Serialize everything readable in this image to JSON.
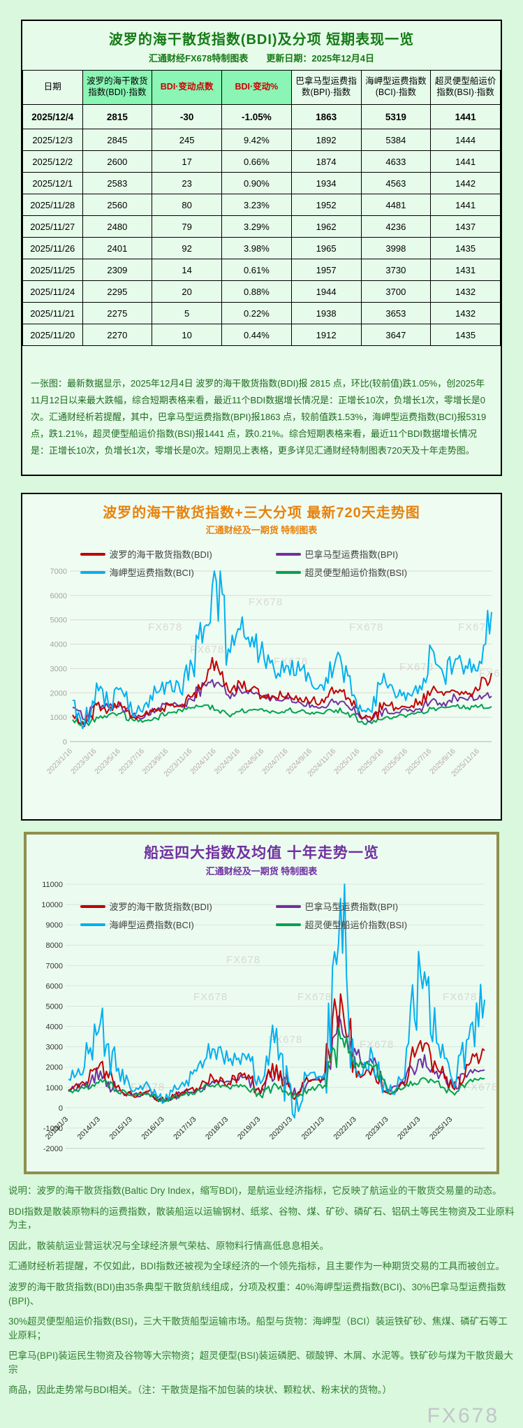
{
  "page": {
    "watermark": "FX678"
  },
  "colors": {
    "table_title_green": "#157a15",
    "header_green_bg": "#8af5b4",
    "header_red_text": "#cc0000",
    "chart720_orange": "#e8820c",
    "chart10y_purple": "#7030a0",
    "bdi_red": "#c00000",
    "bpi_purple": "#7030a0",
    "bci_cyan": "#00b0f0",
    "bsi_green": "#00a24f"
  },
  "table_section": {
    "title": "波罗的海干散货指数(BDI)及分项 短期表现一览",
    "subtitle": "汇通财经FX678特制图表　　更新日期：2025年12月4日",
    "columns": [
      "日期",
      "波罗的海干散货指数(BDI)·指数",
      "BDI·变动点数",
      "BDI·变动%",
      "巴拿马型运费指数(BPI)·指数",
      "海岬型运费指数(BCI)·指数",
      "超灵便型船运价指数(BSI)·指数"
    ],
    "rows": [
      [
        "2025/12/4",
        "2815",
        "-30",
        "-1.05%",
        "1863",
        "5319",
        "1441"
      ],
      [
        "2025/12/3",
        "2845",
        "245",
        "9.42%",
        "1892",
        "5384",
        "1444"
      ],
      [
        "2025/12/2",
        "2600",
        "17",
        "0.66%",
        "1874",
        "4633",
        "1441"
      ],
      [
        "2025/12/1",
        "2583",
        "23",
        "0.90%",
        "1934",
        "4563",
        "1442"
      ],
      [
        "2025/11/28",
        "2560",
        "80",
        "3.23%",
        "1952",
        "4481",
        "1441"
      ],
      [
        "2025/11/27",
        "2480",
        "79",
        "3.29%",
        "1962",
        "4236",
        "1437"
      ],
      [
        "2025/11/26",
        "2401",
        "92",
        "3.98%",
        "1965",
        "3998",
        "1435"
      ],
      [
        "2025/11/25",
        "2309",
        "14",
        "0.61%",
        "1957",
        "3730",
        "1431"
      ],
      [
        "2025/11/24",
        "2295",
        "20",
        "0.88%",
        "1944",
        "3700",
        "1432"
      ],
      [
        "2025/11/21",
        "2275",
        "5",
        "0.22%",
        "1938",
        "3653",
        "1432"
      ],
      [
        "2025/11/20",
        "2270",
        "10",
        "0.44%",
        "1912",
        "3647",
        "1435"
      ]
    ],
    "note": "一张图：最新数据显示，2025年12月4日 波罗的海干散货指数(BDI)报 2815 点，环比(较前值)跌1.05%，创2025年11月12日以来最大跌幅，综合短期表格来看，最近11个BDI数据增长情况是：正增长10次，负增长1次，零增长是0次。汇通财经析若提醒，其中，巴拿马型运费指数(BPI)报1863 点，较前值跌1.53%，海岬型运费指数(BCI)报5319 点，跌1.21%，超灵便型船运价指数(BSI)报1441 点，跌0.21%。综合短期表格来看，最近11个BDI数据增长情况是：正增长10次，负增长1次，零增长是0次。短期见上表格，更多详见汇通财经特制图表720天及十年走势图。"
  },
  "chart_data": [
    {
      "type": "line",
      "title": "波罗的海干散货指数+三大分项  最新720天走势图",
      "subtitle": "汇通财经及一期货 特制图表",
      "ylim": [
        0,
        7000
      ],
      "ystep": 1000,
      "grid": true,
      "legend_position": "top-inside",
      "points_per_label": 2,
      "x_labels": [
        "2023/1/16",
        "2023/3/16",
        "2023/5/16",
        "2023/7/16",
        "2023/9/16",
        "2023/11/16",
        "2024/1/16",
        "2024/3/16",
        "2024/5/16",
        "2024/7/16",
        "2024/9/16",
        "2024/11/16",
        "2025/1/16",
        "2025/3/16",
        "2025/5/16",
        "2025/7/16",
        "2025/9/16",
        "2025/11/16"
      ],
      "series": [
        {
          "name": "波罗的海干散货指数(BDI)",
          "color": "#c00000",
          "z": 3,
          "vol": 0.07,
          "values": [
            1100,
            620,
            1500,
            1300,
            1500,
            1000,
            1100,
            1250,
            1500,
            1450,
            1850,
            2400,
            3300,
            2100,
            2400,
            2200,
            1900,
            1800,
            2000,
            1800,
            1700,
            1600,
            2100,
            1800,
            1100,
            900,
            1600,
            1400,
            1400,
            1650,
            2100,
            1900,
            2050,
            1950,
            2150,
            2815
          ]
        },
        {
          "name": "巴拿马型运费指数(BPI)",
          "color": "#7030a0",
          "z": 2,
          "vol": 0.06,
          "values": [
            1400,
            900,
            1550,
            1400,
            1600,
            1100,
            1000,
            1300,
            1550,
            1500,
            1700,
            2350,
            2400,
            1900,
            2100,
            2000,
            1800,
            1700,
            1750,
            1600,
            1500,
            1400,
            1650,
            1450,
            1000,
            900,
            1300,
            1200,
            1250,
            1350,
            1700,
            1600,
            1800,
            1700,
            1900,
            1863
          ]
        },
        {
          "name": "海岬型运费指数(BCI)",
          "color": "#00b0f0",
          "z": 4,
          "vol": 0.1,
          "values": [
            1700,
            700,
            2400,
            1500,
            2200,
            1100,
            1500,
            2000,
            2400,
            2050,
            3100,
            4700,
            6600,
            3800,
            4600,
            4300,
            3400,
            2600,
            3100,
            2900,
            2300,
            2100,
            3400,
            2700,
            1500,
            1200,
            2800,
            1800,
            2000,
            2300,
            3800,
            2700,
            3400,
            3000,
            3300,
            5319
          ]
        },
        {
          "name": "超灵便型船运价指数(BSI)",
          "color": "#00a24f",
          "z": 1,
          "vol": 0.04,
          "values": [
            900,
            700,
            1000,
            1100,
            1150,
            900,
            850,
            950,
            1200,
            1300,
            1400,
            1500,
            1300,
            1100,
            1250,
            1300,
            1250,
            1200,
            1300,
            1250,
            1200,
            1150,
            1300,
            1200,
            800,
            750,
            950,
            1000,
            1100,
            1200,
            1350,
            1400,
            1450,
            1400,
            1450,
            1441
          ]
        }
      ],
      "watermarks": [
        {
          "x": 0.18,
          "y": 0.35
        },
        {
          "x": 0.28,
          "y": 0.48
        },
        {
          "x": 0.42,
          "y": 0.2
        },
        {
          "x": 0.48,
          "y": 0.55
        },
        {
          "x": 0.66,
          "y": 0.35
        },
        {
          "x": 0.78,
          "y": 0.58
        },
        {
          "x": 0.92,
          "y": 0.35
        },
        {
          "x": 0.97,
          "y": 0.62
        }
      ]
    },
    {
      "type": "line",
      "title": "船运四大指数及均值 十年走势一览",
      "subtitle": "汇通财经及一期货 特制图表",
      "ylim": [
        -2000,
        11000
      ],
      "ystep": 1000,
      "grid": true,
      "legend_position": "top-inside",
      "points_per_label": 2,
      "x_label_base": -100,
      "x_labels": [
        "2013/1/3",
        "2014/1/3",
        "2015/1/3",
        "2016/1/3",
        "2017/1/3",
        "2018/1/3",
        "2019/1/3",
        "2020/1/3",
        "2021/1/3",
        "2022/1/3",
        "2023/1/3",
        "2024/1/3",
        "2025/1/3"
      ],
      "series": [
        {
          "name": "波罗的海干散货指数(BDI)",
          "color": "#c00000",
          "z": 2,
          "vol": 0.08,
          "values": [
            800,
            1200,
            2200,
            1000,
            600,
            800,
            300,
            700,
            950,
            1500,
            1200,
            1700,
            700,
            2100,
            500,
            1300,
            1400,
            5600,
            1500,
            2000,
            700,
            1100,
            3300,
            2000,
            1000,
            2100,
            2815
          ]
        },
        {
          "name": "巴拿马型运费指数(BPI)",
          "color": "#7030a0",
          "z": 1,
          "vol": 0.07,
          "values": [
            900,
            1100,
            1800,
            800,
            600,
            700,
            300,
            700,
            900,
            1300,
            1300,
            1500,
            700,
            2100,
            600,
            1300,
            1400,
            4300,
            2600,
            2200,
            900,
            1200,
            2400,
            1800,
            1000,
            1700,
            1863
          ]
        },
        {
          "name": "海岬型运费指数(BCI)",
          "color": "#00b0f0",
          "z": 3,
          "vol": 0.13,
          "values": [
            1400,
            2000,
            4200,
            1800,
            800,
            1100,
            300,
            1100,
            1800,
            2900,
            2300,
            2600,
            1200,
            3900,
            -300,
            1600,
            1700,
            10300,
            1800,
            2600,
            700,
            1500,
            6600,
            3200,
            1300,
            3400,
            5319
          ]
        },
        {
          "name": "超灵便型船运价指数(BSI)",
          "color": "#00a24f",
          "z": 4,
          "vol": 0.05,
          "values": [
            800,
            950,
            1400,
            900,
            600,
            700,
            350,
            600,
            800,
            1100,
            1000,
            1100,
            600,
            1100,
            500,
            900,
            1100,
            3400,
            2200,
            2000,
            700,
            1000,
            1400,
            1300,
            750,
            1300,
            1441
          ]
        }
      ],
      "watermarks": [
        {
          "x": 0.15,
          "y": 0.78
        },
        {
          "x": 0.38,
          "y": 0.3
        },
        {
          "x": 0.3,
          "y": 0.44
        },
        {
          "x": 0.48,
          "y": 0.6
        },
        {
          "x": 0.55,
          "y": 0.44
        },
        {
          "x": 0.7,
          "y": 0.62
        },
        {
          "x": 0.9,
          "y": 0.44
        },
        {
          "x": 0.95,
          "y": 0.78
        }
      ]
    }
  ],
  "footer": {
    "lines": [
      "说明：波罗的海干散货指数(Baltic Dry Index，缩写BDI)，是航运业经济指标，它反映了航运业的干散货交易量的动态。",
      "BDI指数是散装原物料的运费指数，散装船运以运输钢材、纸浆、谷物、煤、矿砂、磷矿石、铝矾土等民生物资及工业原料为主，",
      "因此，散装航运业营运状况与全球经济景气荣枯、原物料行情高低息息相关。",
      "汇通财经析若提醒，不仅如此，BDI指数还被视为全球经济的一个领先指标，且主要作为一种期货交易的工具而被创立。",
      "波罗的海干散货指数(BDI)由35条典型干散货航线组成，分项及权重：40%海岬型运费指数(BCI)、30%巴拿马型运费指数(BPI)、",
      "30%超灵便型船运价指数(BSI)，三大干散货船型运输市场。船型与货物：海岬型（BCI）装运铁矿砂、焦煤、磷矿石等工业原料；",
      "巴拿马(BPI)装运民生物资及谷物等大宗物资；超灵便型(BSI)装运磷肥、碳酸钾、木屑、水泥等。铁矿砂与煤为干散货最大宗",
      "商品，因此走势常与BDI相关。（注：干散货是指不加包装的块状、颗粒状、粉末状的货物。）"
    ]
  }
}
